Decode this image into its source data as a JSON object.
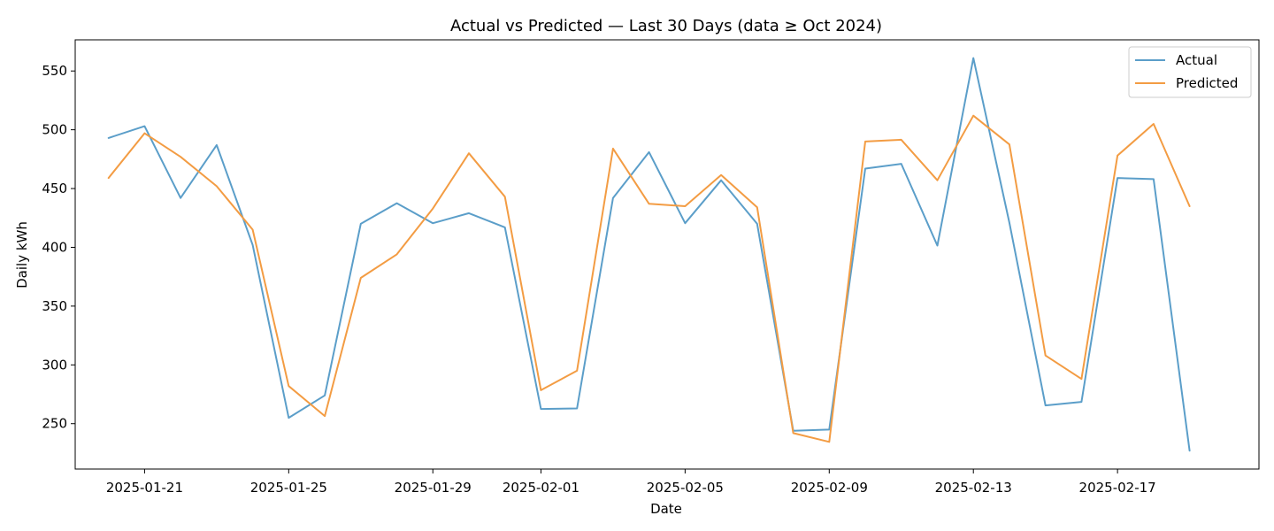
{
  "chart_data": {
    "type": "line",
    "title": "Actual vs Predicted — Last 30 Days (data ≥ Oct 2024)",
    "xlabel": "Date",
    "ylabel": "Daily kWh",
    "x": [
      "2025-01-20",
      "2025-01-21",
      "2025-01-22",
      "2025-01-23",
      "2025-01-24",
      "2025-01-25",
      "2025-01-26",
      "2025-01-27",
      "2025-01-28",
      "2025-01-29",
      "2025-01-30",
      "2025-01-31",
      "2025-02-01",
      "2025-02-02",
      "2025-02-03",
      "2025-02-04",
      "2025-02-05",
      "2025-02-06",
      "2025-02-07",
      "2025-02-08",
      "2025-02-09",
      "2025-02-10",
      "2025-02-11",
      "2025-02-12",
      "2025-02-13",
      "2025-02-14",
      "2025-02-15",
      "2025-02-16",
      "2025-02-17",
      "2025-02-18",
      "2025-02-19"
    ],
    "xlim": [
      "2025-01-19T01:48",
      "2025-02-20T22:12"
    ],
    "ylim": [
      211.4,
      576.5
    ],
    "xticks": [
      "2025-01-21",
      "2025-01-25",
      "2025-01-29",
      "2025-02-01",
      "2025-02-05",
      "2025-02-09",
      "2025-02-13",
      "2025-02-17"
    ],
    "yticks": [
      250,
      300,
      350,
      400,
      450,
      500,
      550
    ],
    "grid": false,
    "legend_position": "top-right",
    "series": [
      {
        "name": "Actual",
        "color": "#5b9ec9",
        "values": [
          493,
          503,
          442,
          487,
          402,
          255,
          274,
          420,
          437.5,
          420.5,
          429,
          417,
          262.5,
          263,
          442,
          481,
          420.5,
          457,
          420,
          244,
          245,
          467,
          471,
          401.5,
          561,
          421,
          265.5,
          268.5,
          459,
          458,
          227
        ]
      },
      {
        "name": "Predicted",
        "color": "#f39c43",
        "values": [
          459,
          497,
          477,
          452,
          415,
          282,
          256.5,
          374,
          394,
          433,
          480,
          443,
          278.5,
          295,
          484,
          437,
          435,
          461.5,
          434,
          242,
          234.5,
          490,
          491.5,
          457,
          512,
          487.5,
          308,
          288,
          478,
          505,
          435
        ]
      }
    ]
  }
}
